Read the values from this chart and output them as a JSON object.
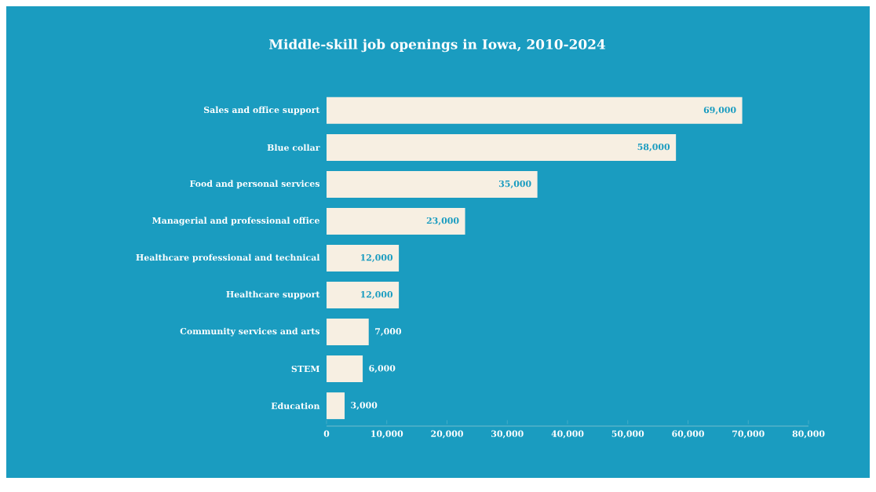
{
  "chart_data": {
    "type": "bar",
    "orientation": "horizontal",
    "title": "Middle-skill job openings in Iowa, 2010-2024",
    "categories": [
      "Sales and office support",
      "Blue collar",
      "Food and personal services",
      "Managerial and professional office",
      "Healthcare professional and technical",
      "Healthcare support",
      "Community services and arts",
      "STEM",
      "Education"
    ],
    "values": [
      69000,
      58000,
      35000,
      23000,
      12000,
      12000,
      7000,
      6000,
      3000
    ],
    "value_labels": [
      "69,000",
      "58,000",
      "35,000",
      "23,000",
      "12,000",
      "12,000",
      "7,000",
      "6,000",
      "3,000"
    ],
    "color": "#f7efe2",
    "xlim": [
      0,
      80000
    ],
    "xticks": [
      0,
      {
        "value": 10000,
        "label": "10,000"
      },
      {
        "value": 20000,
        "label": "20,000"
      },
      {
        "value": 30000,
        "label": "30,000"
      },
      {
        "value": 40000,
        "label": "40,000"
      },
      {
        "value": 50000,
        "label": "50,000"
      },
      {
        "value": 60000,
        "label": "60,000"
      },
      {
        "value": 70000,
        "label": "70,000"
      },
      {
        "value": 80000,
        "label": "80,000"
      }
    ],
    "grid": false
  }
}
